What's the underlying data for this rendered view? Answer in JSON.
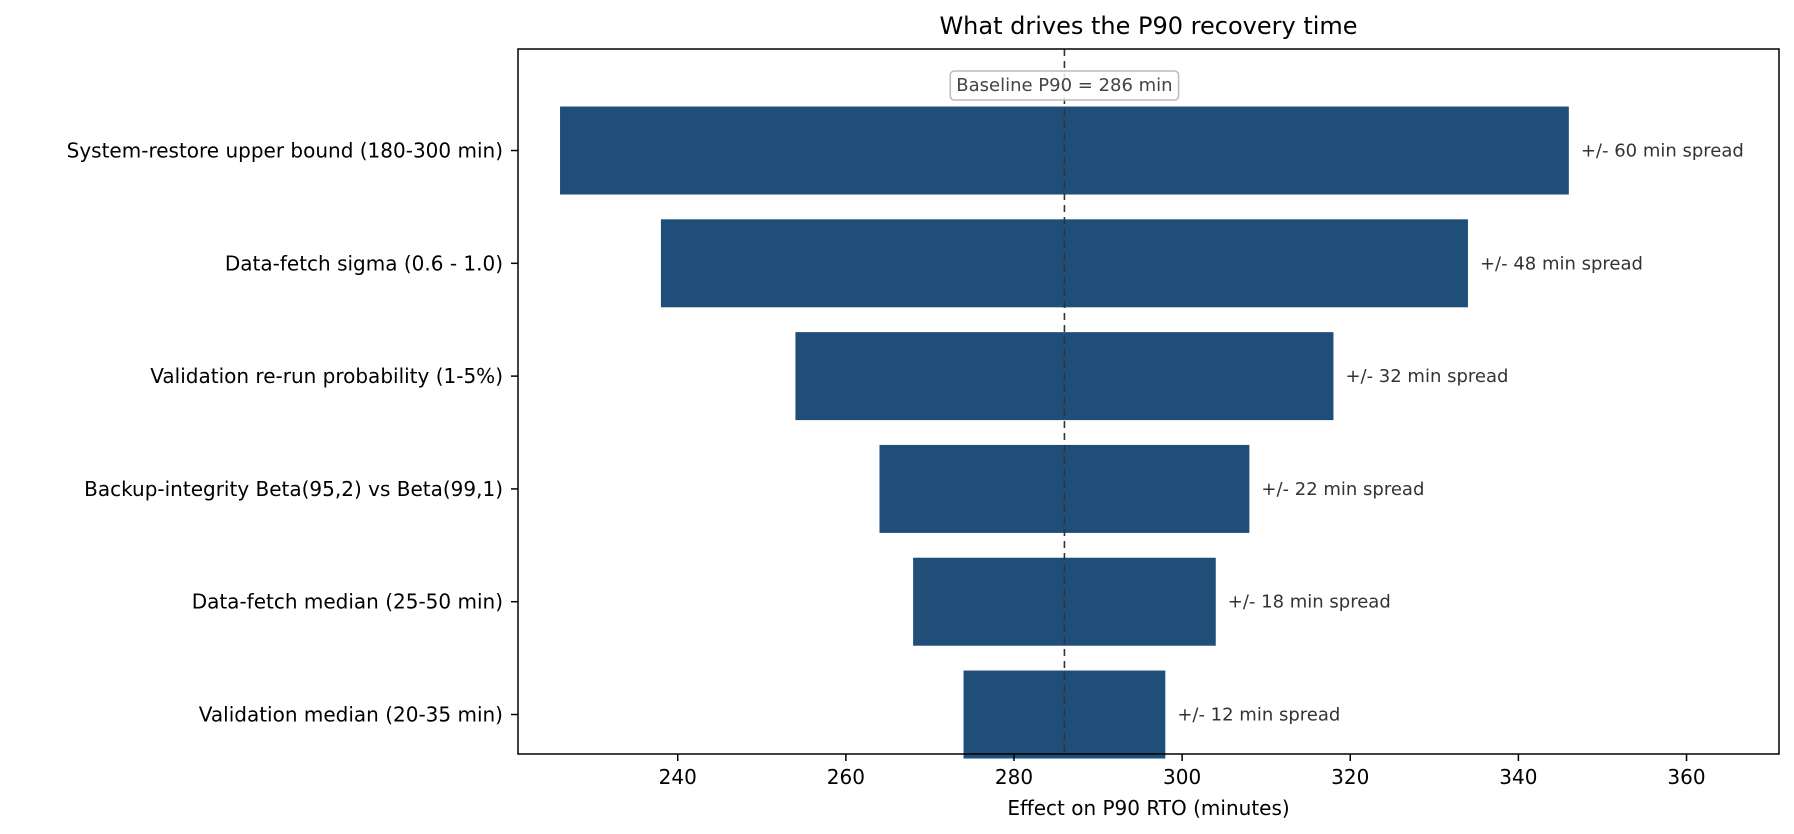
{
  "chart_data": {
    "type": "bar",
    "orientation": "horizontal",
    "title": "What drives the P90 recovery time",
    "xlabel": "Effect on P90 RTO  (minutes)",
    "ylabel": "",
    "xlim": [
      221,
      371
    ],
    "xticks": [
      240,
      260,
      280,
      300,
      320,
      340,
      360
    ],
    "baseline": {
      "value": 286,
      "label": "Baseline P90 = 286 min"
    },
    "categories": [
      "System-restore upper bound (180-300 min)",
      "Data-fetch sigma (0.6 - 1.0)",
      "Validation re-run probability (1-5%)",
      "Backup-integrity Beta(95,2) vs Beta(99,1)",
      "Data-fetch median (25-50 min)",
      "Validation median (20-35 min)"
    ],
    "low": [
      226,
      238,
      254,
      264,
      268,
      274
    ],
    "high": [
      346,
      334,
      318,
      308,
      304,
      298
    ],
    "annotations": [
      "+/- 60 min spread",
      "+/- 48 min spread",
      "+/- 32 min spread",
      "+/- 22 min spread",
      "+/- 18 min spread",
      "+/- 12 min spread"
    ],
    "bar_color": "#1f4e79",
    "grid": false,
    "legend": "none"
  }
}
